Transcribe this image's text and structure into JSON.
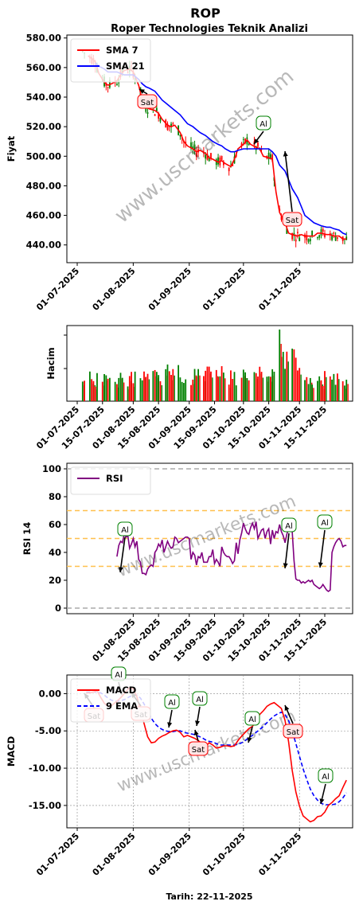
{
  "header": {
    "ticker": "ROP",
    "subtitle": "Roper Technologies Teknik Analizi",
    "footer": "Tarih: 22-11-2025",
    "watermark": "www.uscmarkets.com"
  },
  "colors": {
    "sma7": "#ff0000",
    "sma21": "#0000ff",
    "up": "#008000",
    "down": "#ff0000",
    "rsi": "#800080",
    "macd": "#ff0000",
    "signal": "#0000ff",
    "grey_line": "#aaaaaa",
    "ref_line": "#ffc04d",
    "buy_edge": "#008000",
    "sell_edge": "#ff0000",
    "sell_fill": "#ffe5e5",
    "buy_fill": "#ffffff"
  },
  "chart_data": [
    {
      "type": "line",
      "panel": "price",
      "ylabel": "Fiyat",
      "ylim": [
        428,
        582
      ],
      "yticks": [
        "580.00",
        "560.00",
        "540.00",
        "520.00",
        "500.00",
        "480.00",
        "460.00",
        "440.00"
      ],
      "ytick_values": [
        580,
        560,
        540,
        520,
        500,
        480,
        460,
        440
      ],
      "x_start": "2025-07-01",
      "xticks": [
        "01-07-2025",
        "01-08-2025",
        "01-09-2025",
        "01-10-2025",
        "01-11-2025"
      ],
      "xtick_days": [
        0,
        31,
        62,
        92,
        123
      ],
      "series": [
        {
          "name": "SMA 7",
          "x": [
            6,
            8,
            10,
            12,
            15,
            17,
            19,
            22,
            24,
            26,
            29,
            31,
            34,
            36,
            38,
            40,
            43,
            45,
            47,
            50,
            52,
            54,
            57,
            59,
            61,
            64,
            66,
            68,
            71,
            73,
            75,
            78,
            80,
            82,
            85,
            87,
            89,
            92,
            94,
            96,
            99,
            101,
            103,
            106,
            108,
            110,
            112,
            115,
            117,
            119,
            122,
            124,
            126,
            128,
            131,
            133,
            135,
            138,
            140,
            142,
            145,
            147,
            149
          ],
          "values": [
            568,
            566,
            564,
            556,
            550,
            548,
            549,
            551,
            555,
            558,
            559,
            557,
            548,
            538,
            533,
            532,
            531,
            529,
            525,
            521,
            520,
            521,
            516,
            510,
            507,
            505,
            503,
            504,
            502,
            499,
            498,
            496,
            497,
            495,
            493,
            498,
            505,
            508,
            511,
            508,
            506,
            505,
            500,
            499,
            498,
            476,
            462,
            455,
            448,
            447,
            446,
            447,
            446,
            446,
            446,
            448,
            448,
            447,
            447,
            446,
            446,
            444,
            444
          ]
        },
        {
          "name": "SMA 21",
          "x": [
            10,
            12,
            15,
            17,
            19,
            22,
            24,
            26,
            29,
            31,
            34,
            36,
            38,
            40,
            43,
            45,
            47,
            50,
            52,
            54,
            57,
            59,
            61,
            64,
            66,
            68,
            71,
            73,
            75,
            78,
            80,
            82,
            85,
            87,
            89,
            92,
            94,
            96,
            99,
            101,
            103,
            106,
            108,
            110,
            112,
            115,
            117,
            119,
            122,
            124,
            126,
            128,
            131,
            133,
            135,
            138,
            140,
            142,
            145,
            147,
            149
          ],
          "values": [
            563,
            561,
            559,
            557,
            557,
            557,
            556,
            555,
            555,
            555,
            552,
            549,
            547,
            546,
            544,
            541,
            538,
            535,
            533,
            531,
            528,
            525,
            522,
            520,
            518,
            516,
            514,
            512,
            510,
            508,
            507,
            505,
            503,
            503,
            504,
            505,
            505,
            505,
            505,
            505,
            505,
            505,
            503,
            500,
            494,
            490,
            484,
            478,
            472,
            466,
            460,
            458,
            455,
            454,
            453,
            452,
            452,
            451,
            450,
            448,
            447
          ]
        }
      ],
      "annotations": [
        {
          "label": "Sat",
          "day": 38
        },
        {
          "label": "Al",
          "day": 102
        },
        {
          "label": "Sat",
          "day": 118
        }
      ],
      "legend": "upper-left"
    },
    {
      "type": "bar",
      "panel": "volume",
      "ylabel": "Hacim",
      "xticks": [
        "01-07-2025",
        "15-07-2025",
        "01-08-2025",
        "15-08-2025",
        "01-09-2025",
        "15-09-2025",
        "01-10-2025",
        "15-10-2025",
        "01-11-2025",
        "15-11-2025"
      ],
      "xtick_days": [
        0,
        14,
        31,
        45,
        62,
        76,
        92,
        106,
        123,
        137
      ]
    },
    {
      "type": "line",
      "panel": "rsi",
      "ylabel": "RSI 14",
      "ylim": [
        -4,
        104
      ],
      "yticks": [
        "0",
        "20",
        "40",
        "60",
        "80",
        "100"
      ],
      "ytick_values": [
        0,
        20,
        40,
        60,
        80,
        100
      ],
      "reference_lines": [
        0,
        30,
        50,
        70,
        100
      ],
      "xticks": [
        "01-08-2025",
        "15-08-2025",
        "01-09-2025",
        "15-09-2025",
        "01-10-2025",
        "15-10-2025",
        "01-11-2025",
        "15-11-2025"
      ],
      "xtick_days": [
        31,
        45,
        62,
        76,
        92,
        106,
        123,
        137
      ],
      "series": [
        {
          "name": "RSI",
          "x": [
            22,
            23,
            24,
            25,
            26,
            27,
            28,
            29,
            30,
            31,
            32,
            33,
            34,
            35,
            36,
            37,
            38,
            39,
            40,
            41,
            42,
            43,
            44,
            45,
            46,
            47,
            48,
            49,
            50,
            51,
            52,
            53,
            54,
            55,
            56,
            57,
            58,
            59,
            60,
            61,
            62,
            63,
            64,
            65,
            66,
            67,
            68,
            69,
            70,
            71,
            72,
            73,
            74,
            75,
            76,
            77,
            78,
            79,
            80,
            81,
            82,
            83,
            84,
            85,
            86,
            87,
            88,
            89,
            90,
            91,
            92,
            93,
            94,
            95,
            96,
            97,
            98,
            99,
            100,
            101,
            102,
            103,
            104,
            105,
            106,
            107,
            108,
            109,
            110,
            111,
            112,
            113,
            114,
            115,
            116,
            117,
            118,
            119,
            120,
            121,
            122,
            123,
            124,
            125,
            126,
            127,
            128,
            129,
            130,
            131,
            132,
            133,
            134,
            135,
            136,
            137,
            138,
            139,
            140,
            141,
            142,
            143,
            144,
            145,
            146,
            147,
            148,
            149
          ],
          "values": [
            37,
            45,
            48,
            47,
            53,
            51,
            52,
            43,
            46,
            50,
            44,
            48,
            35,
            33,
            25,
            25,
            24,
            28,
            30,
            31,
            30,
            40,
            42,
            46,
            44,
            49,
            40,
            44,
            48,
            45,
            43,
            44,
            51,
            50,
            47,
            48,
            49,
            50,
            51,
            51,
            50,
            35,
            40,
            38,
            31,
            37,
            36,
            40,
            33,
            33,
            33,
            37,
            37,
            42,
            32,
            35,
            33,
            30,
            44,
            40,
            38,
            37,
            37,
            35,
            32,
            34,
            47,
            39,
            49,
            54,
            61,
            57,
            54,
            53,
            58,
            61,
            57,
            62,
            50,
            53,
            56,
            57,
            50,
            55,
            57,
            46,
            56,
            50,
            55,
            54,
            60,
            55,
            52,
            47,
            53,
            57,
            56,
            55,
            34,
            21,
            20,
            20,
            18,
            19,
            18,
            19,
            20,
            19,
            20,
            17,
            16,
            15,
            14,
            15,
            17,
            15,
            13,
            12,
            13,
            40,
            44,
            47,
            49,
            50,
            48,
            44,
            45,
            45
          ]
        }
      ],
      "annotations": [
        {
          "label": "Al",
          "day": 36
        },
        {
          "label": "Al",
          "day": 114
        },
        {
          "label": "Al",
          "day": 142
        }
      ],
      "legend": "upper-left"
    },
    {
      "type": "line",
      "panel": "macd",
      "ylabel": "MACD",
      "ylim": [
        -18,
        2.5
      ],
      "yticks": [
        "0.00",
        "-5.00",
        "-10.00",
        "-15.00"
      ],
      "ytick_values": [
        0,
        -5,
        -10,
        -15
      ],
      "xticks": [
        "01-07-2025",
        "01-08-2025",
        "01-09-2025",
        "01-10-2025",
        "01-11-2025"
      ],
      "xtick_days": [
        0,
        31,
        62,
        92,
        123
      ],
      "series": [
        {
          "name": "MACD",
          "x": [
            5,
            7,
            9,
            11,
            13,
            15,
            17,
            19,
            21,
            23,
            25,
            27,
            29,
            31,
            33,
            35,
            37,
            39,
            41,
            43,
            45,
            47,
            49,
            51,
            53,
            55,
            57,
            59,
            61,
            63,
            65,
            67,
            69,
            71,
            73,
            75,
            77,
            79,
            81,
            83,
            85,
            87,
            89,
            91,
            93,
            95,
            97,
            99,
            101,
            103,
            105,
            107,
            109,
            111,
            113,
            115,
            117,
            119,
            121,
            123,
            125,
            127,
            129,
            131,
            133,
            135,
            137,
            139,
            141,
            143,
            145,
            147,
            149
          ],
          "values": [
            0.1,
            0.1,
            0.2,
            0.4,
            -0.5,
            -1.3,
            -1.7,
            -1.6,
            -1.2,
            -0.8,
            -0.3,
            0.3,
            0.8,
            0.6,
            -0.4,
            -2.2,
            -4.0,
            -5.8,
            -6.6,
            -6.5,
            -6.0,
            -5.7,
            -5.5,
            -5.2,
            -5.0,
            -4.9,
            -5.2,
            -5.8,
            -5.6,
            -5.8,
            -6.0,
            -6.3,
            -6.7,
            -7.1,
            -6.6,
            -6.9,
            -7.3,
            -7.2,
            -7.0,
            -7.0,
            -7.1,
            -7.0,
            -6.3,
            -5.7,
            -5.2,
            -4.7,
            -4.4,
            -3.6,
            -2.8,
            -2.3,
            -1.7,
            -1.4,
            -1.2,
            -1.6,
            -2.0,
            -3.6,
            -6.5,
            -10.3,
            -13.2,
            -15.1,
            -16.4,
            -16.8,
            -17.2,
            -17.0,
            -16.5,
            -16.4,
            -15.9,
            -15.0,
            -14.6,
            -14.1,
            -13.7,
            -12.6,
            -11.6
          ]
        },
        {
          "name": "9 EMA",
          "x": [
            5,
            7,
            9,
            11,
            13,
            15,
            17,
            19,
            21,
            23,
            25,
            27,
            29,
            31,
            33,
            35,
            37,
            39,
            41,
            43,
            45,
            47,
            49,
            51,
            53,
            55,
            57,
            59,
            61,
            63,
            65,
            67,
            69,
            71,
            73,
            75,
            77,
            79,
            81,
            83,
            85,
            87,
            89,
            91,
            93,
            95,
            97,
            99,
            101,
            103,
            105,
            107,
            109,
            111,
            113,
            115,
            117,
            119,
            121,
            123,
            125,
            127,
            129,
            131,
            133,
            135,
            137,
            139,
            141,
            143,
            145,
            147,
            149
          ],
          "values": [
            0.2,
            0.2,
            0.2,
            0.2,
            0.1,
            -0.2,
            -0.6,
            -0.9,
            -1.0,
            -1.0,
            -0.9,
            -0.7,
            -0.4,
            -0.2,
            -0.2,
            -0.6,
            -1.4,
            -2.4,
            -3.3,
            -4.0,
            -4.5,
            -4.8,
            -5.0,
            -5.1,
            -5.1,
            -5.0,
            -5.0,
            -5.2,
            -5.3,
            -5.4,
            -5.5,
            -5.7,
            -5.9,
            -6.2,
            -6.4,
            -6.5,
            -6.7,
            -6.9,
            -6.9,
            -6.9,
            -6.9,
            -6.9,
            -6.8,
            -6.6,
            -6.3,
            -5.9,
            -5.6,
            -5.2,
            -4.8,
            -4.4,
            -3.9,
            -3.4,
            -3.0,
            -2.7,
            -2.5,
            -2.8,
            -3.6,
            -5.0,
            -6.7,
            -8.4,
            -10.1,
            -11.5,
            -12.8,
            -13.7,
            -14.3,
            -14.7,
            -14.9,
            -14.9,
            -14.9,
            -14.8,
            -14.5,
            -14.0,
            -13.3
          ]
        }
      ],
      "annotations": [
        {
          "label": "Sat",
          "day": 10
        },
        {
          "label": "Al",
          "day": 24
        },
        {
          "label": "Sat",
          "day": 35
        },
        {
          "label": "Al",
          "day": 52
        },
        {
          "label": "Al",
          "day": 66
        },
        {
          "label": "Sat",
          "day": 67
        },
        {
          "label": "Al",
          "day": 95
        },
        {
          "label": "Sat",
          "day": 118
        },
        {
          "label": "Al",
          "day": 142
        }
      ],
      "legend": "upper-left"
    }
  ]
}
